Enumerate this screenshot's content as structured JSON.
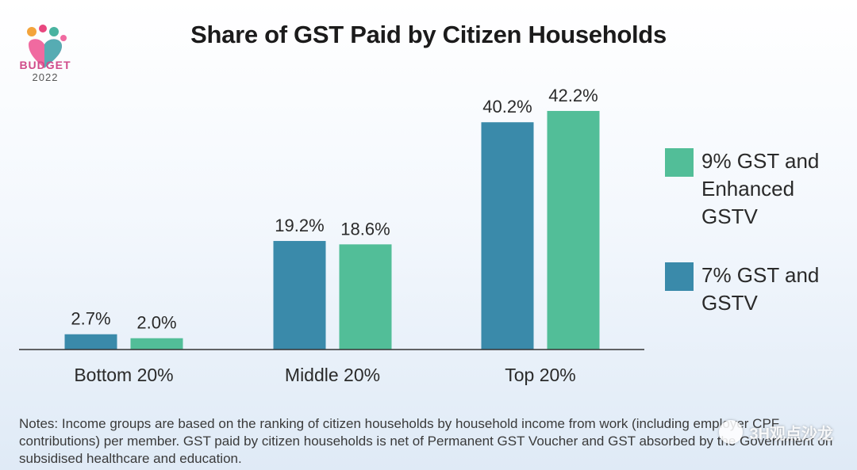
{
  "logo": {
    "word": "BUDGET",
    "year": "2022"
  },
  "title": "Share of GST Paid by Citizen Households",
  "colors": {
    "series_a": "#3a8aaa",
    "series_b": "#52be98",
    "axis": "#333333",
    "text": "#2a2a2a"
  },
  "chart_data": {
    "type": "bar",
    "title": "Share of GST Paid by Citizen Households",
    "categories": [
      "Bottom 20%",
      "Middle 20%",
      "Top 20%"
    ],
    "series": [
      {
        "name": "7% GST and GSTV",
        "values": [
          2.7,
          19.2,
          40.2
        ],
        "labels": [
          "2.7%",
          "19.2%",
          "40.2%"
        ],
        "color": "#3a8aaa"
      },
      {
        "name": "9% GST and Enhanced GSTV",
        "values": [
          2.0,
          18.6,
          42.2
        ],
        "labels": [
          "2.0%",
          "18.6%",
          "42.2%"
        ],
        "color": "#52be98"
      }
    ],
    "ylim": [
      0,
      45
    ],
    "grid": false,
    "legend_placement": "right"
  },
  "legend": [
    {
      "label": "9% GST and Enhanced GSTV",
      "color": "#52be98"
    },
    {
      "label": "7% GST and GSTV",
      "color": "#3a8aaa"
    }
  ],
  "notes": "Notes: Income groups are based on the ranking of citizen households by household income from work (including employer CPF contributions) per member. GST paid by citizen households is net of Permanent GST Voucher and GST absorbed by the Government on subsidised healthcare and education.",
  "watermark": {
    "text": "3H观点沙龙"
  }
}
